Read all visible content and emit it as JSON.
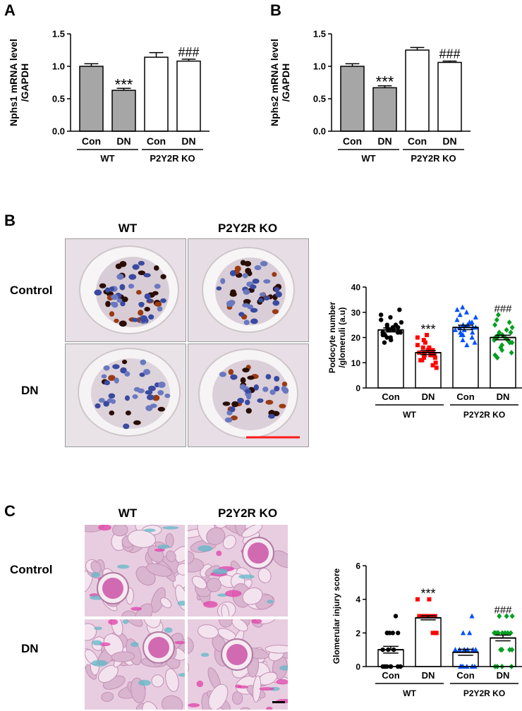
{
  "panels": {
    "A": "A",
    "B_top": "B",
    "B": "B",
    "C": "C"
  },
  "micrographs": {
    "B": {
      "col_labels": [
        "WT",
        "P2Y2R KO"
      ],
      "row_labels": [
        "Control",
        "DN"
      ]
    },
    "C": {
      "col_labels": [
        "WT",
        "P2Y2R KO"
      ],
      "row_labels": [
        "Control",
        "DN"
      ]
    }
  },
  "colors": {
    "bar_gray": "#a6a6a6",
    "bar_white": "#ffffff",
    "con_wt": "#000000",
    "dn_wt": "#ff0000",
    "con_ko": "#0050ff",
    "dn_ko": "#00a020",
    "scale_bar_red": "#ff1a1a"
  },
  "chart_data": [
    {
      "id": "nphs1",
      "type": "bar",
      "categories": [
        "Con",
        "DN",
        "Con",
        "DN"
      ],
      "groups": [
        {
          "label": "WT",
          "span": [
            0,
            1
          ]
        },
        {
          "label": "P2Y2R KO",
          "span": [
            2,
            3
          ]
        }
      ],
      "values": [
        1.0,
        0.63,
        1.14,
        1.08
      ],
      "errors": [
        0.04,
        0.03,
        0.07,
        0.03
      ],
      "fills": [
        "gray",
        "gray",
        "white",
        "white"
      ],
      "annotations": [
        "",
        "***",
        "",
        "###"
      ],
      "ylabel_line1": "Nphs1 mRNA level",
      "ylabel_line2": "/GAPDH",
      "yticks": [
        "0.0",
        "0.5",
        "1.0",
        "1.5"
      ],
      "ylim": [
        0,
        1.5
      ]
    },
    {
      "id": "nphs2",
      "type": "bar",
      "categories": [
        "Con",
        "DN",
        "Con",
        "DN"
      ],
      "groups": [
        {
          "label": "WT",
          "span": [
            0,
            1
          ]
        },
        {
          "label": "P2Y2R KO",
          "span": [
            2,
            3
          ]
        }
      ],
      "values": [
        1.0,
        0.67,
        1.25,
        1.06
      ],
      "errors": [
        0.04,
        0.03,
        0.04,
        0.02
      ],
      "fills": [
        "gray",
        "gray",
        "white",
        "white"
      ],
      "annotations": [
        "",
        "***",
        "",
        "###"
      ],
      "ylabel_line1": "Nphs2 mRNA level",
      "ylabel_line2": "/GAPDH",
      "yticks": [
        "0.0",
        "0.5",
        "1.0",
        "1.5"
      ],
      "ylim": [
        0,
        1.5
      ]
    },
    {
      "id": "podocyte",
      "type": "bar",
      "categories": [
        "Con",
        "DN",
        "Con",
        "DN"
      ],
      "groups": [
        {
          "label": "WT",
          "span": [
            0,
            1
          ]
        },
        {
          "label": "P2Y2R KO",
          "span": [
            2,
            3
          ]
        }
      ],
      "values": [
        23,
        14,
        24,
        20
      ],
      "errors": [
        0.8,
        0.8,
        0.9,
        0.9
      ],
      "markers": [
        "circle",
        "square",
        "triangle",
        "diamond"
      ],
      "point_colors": [
        "con_wt",
        "dn_wt",
        "con_ko",
        "dn_ko"
      ],
      "points": [
        [
          18,
          19,
          20,
          20,
          21,
          21,
          22,
          22,
          22,
          23,
          23,
          23,
          24,
          24,
          24,
          25,
          25,
          26,
          27,
          28,
          29,
          31
        ],
        [
          8,
          9,
          10,
          11,
          11,
          12,
          12,
          13,
          13,
          13,
          14,
          14,
          14,
          15,
          15,
          15,
          16,
          16,
          17,
          18,
          19,
          20,
          21
        ],
        [
          17,
          18,
          19,
          20,
          21,
          21,
          22,
          22,
          23,
          23,
          24,
          24,
          24,
          25,
          25,
          26,
          26,
          27,
          28,
          29,
          30,
          31,
          32
        ],
        [
          12,
          13,
          14,
          15,
          16,
          17,
          18,
          18,
          19,
          19,
          20,
          20,
          20,
          21,
          21,
          22,
          22,
          23,
          24,
          25,
          26,
          27,
          29
        ]
      ],
      "annotations": [
        "",
        "***",
        "",
        "###"
      ],
      "ylabel_line1": "Podocyte number",
      "ylabel_line2": "/glomeruli (a.u)",
      "yticks": [
        "0",
        "10",
        "20",
        "30",
        "40"
      ],
      "ylim": [
        0,
        40
      ]
    },
    {
      "id": "injury",
      "type": "bar",
      "categories": [
        "Con",
        "DN",
        "Con",
        "DN"
      ],
      "groups": [
        {
          "label": "WT",
          "span": [
            0,
            1
          ]
        },
        {
          "label": "P2Y2R KO",
          "span": [
            2,
            3
          ]
        }
      ],
      "values": [
        1.0,
        2.9,
        0.85,
        1.7
      ],
      "errors": [
        0.2,
        0.12,
        0.18,
        0.17
      ],
      "markers": [
        "circle",
        "square",
        "triangle",
        "diamond"
      ],
      "point_colors": [
        "con_wt",
        "dn_wt",
        "con_ko",
        "dn_ko"
      ],
      "points": [
        [
          0,
          0,
          0,
          0,
          0,
          0,
          0,
          0,
          1,
          1,
          1,
          2,
          2,
          2,
          2,
          2,
          3
        ],
        [
          2,
          2,
          2,
          3,
          3,
          3,
          3,
          3,
          3,
          3,
          3,
          3,
          3,
          3,
          3,
          3,
          3,
          4,
          4
        ],
        [
          0,
          0,
          0,
          0,
          0,
          0,
          0,
          0,
          1,
          1,
          1,
          1,
          1,
          1,
          2,
          2,
          3
        ],
        [
          0,
          0,
          0,
          0,
          1,
          1,
          1,
          1,
          2,
          2,
          2,
          2,
          2,
          2,
          2,
          2,
          3,
          3,
          3
        ]
      ],
      "annotations": [
        "",
        "***",
        "",
        "###"
      ],
      "ylabel_line1": "Glomerular injury score",
      "ylabel_line2": "",
      "yticks": [
        "0",
        "2",
        "4",
        "6"
      ],
      "ylim": [
        0,
        6
      ]
    }
  ]
}
